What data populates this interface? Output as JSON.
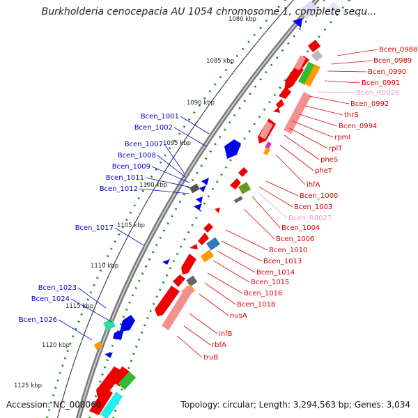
{
  "title": "Burkholderia cenocepacia AU 1054 chromosome 1, complete sequ...",
  "footer": {
    "accession": "Accession: NC_008060",
    "summary": "Topology: circular; Length: 3,294,563 bp; Genes: 3,034"
  },
  "colors": {
    "forward_label": "#0000cc",
    "reverse_label": "#dd0000",
    "rna_label": "#ee99cc",
    "backbone": "#888888",
    "tick": "#228822"
  },
  "scale_ticks": [
    "1080 kbp",
    "1085 kbp",
    "1090 kbp",
    "1095 kbp",
    "1100 kbp",
    "1105 kbp",
    "1110 kbp",
    "1115 kbp",
    "1120 kbp",
    "1125 kbp"
  ],
  "forward_labels": [
    "Bcen_1001",
    "Bcen_1002",
    "Bcen_1007",
    "Bcen_1008",
    "Bcen_1009",
    "Bcen_1011",
    "Bcen_1012",
    "Bcen_1017",
    "Bcen_1023",
    "Bcen_1024",
    "Bcen_1026"
  ],
  "reverse_labels": [
    "Bcen_0988",
    "Bcen_0989",
    "Bcen_0990",
    "Bcen_0991",
    "Bcen_R0026",
    "Bcen_0992",
    "thrS",
    "Bcen_0994",
    "rpmI",
    "rplT",
    "pheS",
    "pheT",
    "ihfA",
    "Bcen_1000",
    "Bcen_1003",
    "Bcen_R0027",
    "Bcen_1004",
    "Bcen_1006",
    "Bcen_1010",
    "Bcen_1013",
    "Bcen_1014",
    "Bcen_1015",
    "Bcen_1016",
    "Bcen_1018",
    "nusA",
    "infB",
    "rbfA",
    "truB"
  ]
}
